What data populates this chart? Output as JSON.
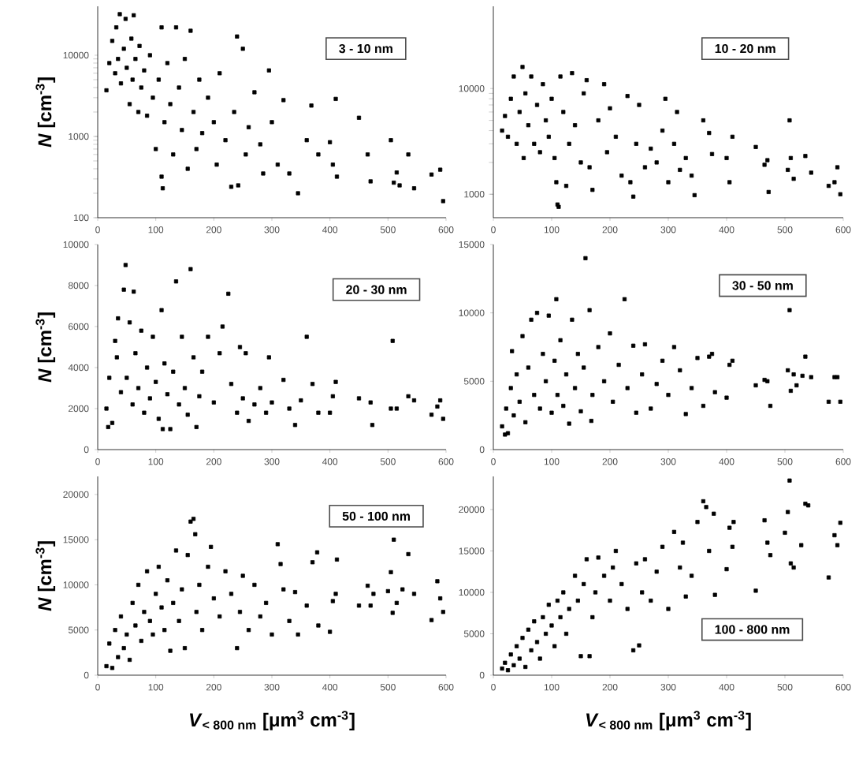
{
  "chart_data": [
    {
      "type": "scatter",
      "log": "y",
      "marker": "square",
      "color": "#000000",
      "xlim": [
        0,
        600
      ],
      "xticks": [
        0,
        100,
        200,
        300,
        400,
        500,
        600
      ],
      "ylim": [
        100,
        40000
      ],
      "yticks": [
        100,
        1000,
        10000
      ],
      "ylabel": "*N* [cm$^{-3}$]",
      "annotations": [
        "3 - 10 nm"
      ],
      "x": [
        15,
        20,
        25,
        30,
        32,
        35,
        38,
        40,
        45,
        48,
        50,
        55,
        58,
        60,
        62,
        65,
        70,
        72,
        75,
        80,
        85,
        90,
        95,
        100,
        105,
        110,
        110,
        112,
        115,
        120,
        125,
        130,
        135,
        140,
        145,
        150,
        155,
        160,
        165,
        170,
        175,
        180,
        190,
        200,
        205,
        210,
        220,
        230,
        235,
        240,
        242,
        250,
        255,
        260,
        270,
        280,
        285,
        295,
        300,
        310,
        320,
        330,
        345,
        360,
        368,
        380,
        400,
        405,
        410,
        412,
        450,
        465,
        470,
        505,
        510,
        515,
        520,
        535,
        545,
        575,
        590,
        595
      ],
      "values": [
        3700,
        8000,
        15000,
        6000,
        22000,
        9000,
        32000,
        4500,
        12000,
        28000,
        7000,
        2500,
        16000,
        5000,
        31000,
        9000,
        2000,
        13000,
        4000,
        6500,
        1800,
        10000,
        3000,
        700,
        5000,
        22000,
        320,
        230,
        1500,
        8000,
        2500,
        600,
        22000,
        4000,
        1200,
        9000,
        400,
        20000,
        2000,
        700,
        5000,
        1100,
        3000,
        1500,
        450,
        6000,
        900,
        240,
        2000,
        17000,
        250,
        12000,
        600,
        1300,
        3500,
        800,
        350,
        6500,
        1500,
        450,
        2800,
        350,
        200,
        900,
        2400,
        600,
        850,
        450,
        2900,
        320,
        1700,
        600,
        280,
        900,
        270,
        360,
        250,
        600,
        230,
        340,
        390,
        160
      ]
    },
    {
      "type": "scatter",
      "log": "y",
      "marker": "square",
      "color": "#000000",
      "xlim": [
        0,
        600
      ],
      "xticks": [
        0,
        100,
        200,
        300,
        400,
        500,
        600
      ],
      "ylim": [
        600,
        60000
      ],
      "yticks": [
        1000,
        10000
      ],
      "annotations": [
        "10 - 20 nm"
      ],
      "x": [
        15,
        20,
        25,
        30,
        35,
        40,
        45,
        50,
        52,
        55,
        60,
        65,
        70,
        75,
        80,
        85,
        90,
        95,
        100,
        105,
        108,
        110,
        112,
        115,
        120,
        125,
        130,
        135,
        140,
        150,
        155,
        160,
        165,
        170,
        180,
        190,
        195,
        200,
        210,
        220,
        230,
        235,
        240,
        245,
        250,
        260,
        270,
        280,
        290,
        295,
        300,
        310,
        315,
        320,
        330,
        340,
        345,
        360,
        370,
        375,
        400,
        405,
        410,
        450,
        465,
        470,
        472,
        505,
        508,
        510,
        515,
        535,
        545,
        575,
        585,
        590,
        595
      ],
      "values": [
        4000,
        5500,
        3500,
        8000,
        13000,
        3000,
        6000,
        16000,
        2200,
        9000,
        4500,
        13000,
        3000,
        7000,
        2500,
        11000,
        5000,
        3500,
        8000,
        2200,
        1300,
        800,
        760,
        13000,
        6000,
        1200,
        3000,
        14000,
        4500,
        2000,
        9000,
        12000,
        1800,
        1100,
        5000,
        11000,
        2500,
        6500,
        3500,
        1500,
        8500,
        1300,
        950,
        3000,
        7000,
        1800,
        2700,
        2000,
        4000,
        8000,
        1300,
        3000,
        6000,
        1700,
        2200,
        1500,
        980,
        5000,
        3800,
        2400,
        2200,
        1300,
        3500,
        2800,
        1900,
        2100,
        1050,
        1700,
        5000,
        2200,
        1400,
        2300,
        1600,
        1200,
        1300,
        1800,
        1000
      ]
    },
    {
      "type": "scatter",
      "marker": "square",
      "color": "#000000",
      "xlim": [
        0,
        600
      ],
      "xticks": [
        0,
        100,
        200,
        300,
        400,
        500,
        600
      ],
      "ylim": [
        0,
        10000
      ],
      "yticks": [
        0,
        2000,
        4000,
        6000,
        8000,
        10000
      ],
      "ylabel": "*N* [cm$^{-3}$]",
      "annotations": [
        "20 - 30 nm"
      ],
      "x": [
        15,
        18,
        20,
        25,
        30,
        33,
        35,
        40,
        45,
        48,
        50,
        55,
        60,
        62,
        65,
        70,
        75,
        80,
        85,
        90,
        95,
        100,
        105,
        110,
        112,
        115,
        120,
        125,
        130,
        135,
        140,
        145,
        150,
        155,
        160,
        165,
        170,
        175,
        180,
        190,
        200,
        210,
        215,
        225,
        230,
        240,
        245,
        250,
        255,
        260,
        270,
        280,
        290,
        295,
        300,
        320,
        330,
        340,
        350,
        360,
        370,
        380,
        400,
        405,
        410,
        450,
        470,
        473,
        505,
        508,
        515,
        535,
        545,
        575,
        585,
        590,
        595
      ],
      "values": [
        2000,
        1100,
        3500,
        1300,
        5300,
        4500,
        6400,
        2800,
        7800,
        9000,
        3500,
        6200,
        2200,
        7700,
        4700,
        3000,
        5800,
        1800,
        4000,
        2500,
        5500,
        3300,
        1500,
        6800,
        1000,
        4200,
        2700,
        1000,
        3800,
        8200,
        2200,
        5500,
        3000,
        1700,
        8800,
        4500,
        1100,
        2600,
        3800,
        5500,
        2300,
        4700,
        6000,
        7600,
        3200,
        1800,
        5000,
        2500,
        4700,
        1400,
        2200,
        3000,
        1800,
        4500,
        2300,
        3400,
        2000,
        1200,
        2400,
        5500,
        3200,
        1800,
        1800,
        2600,
        3300,
        2500,
        2300,
        1200,
        2000,
        5300,
        2000,
        2600,
        2400,
        1700,
        2100,
        2400,
        1500
      ]
    },
    {
      "type": "scatter",
      "marker": "square",
      "color": "#000000",
      "xlim": [
        0,
        600
      ],
      "xticks": [
        0,
        100,
        200,
        300,
        400,
        500,
        600
      ],
      "ylim": [
        0,
        15000
      ],
      "yticks": [
        0,
        5000,
        10000,
        15000
      ],
      "annotations": [
        "30 - 50 nm"
      ],
      "x": [
        15,
        20,
        22,
        25,
        30,
        32,
        35,
        40,
        45,
        50,
        55,
        60,
        65,
        70,
        75,
        80,
        85,
        90,
        95,
        100,
        105,
        108,
        110,
        115,
        120,
        125,
        130,
        135,
        140,
        145,
        150,
        155,
        158,
        165,
        168,
        170,
        180,
        190,
        200,
        205,
        215,
        225,
        230,
        240,
        245,
        255,
        260,
        270,
        280,
        290,
        300,
        310,
        320,
        330,
        340,
        350,
        360,
        370,
        375,
        380,
        400,
        405,
        410,
        450,
        465,
        470,
        475,
        505,
        508,
        510,
        515,
        520,
        530,
        535,
        545,
        575,
        585,
        590,
        595
      ],
      "values": [
        1700,
        1100,
        3000,
        1200,
        4500,
        7200,
        2500,
        5500,
        3500,
        8300,
        2000,
        6000,
        9500,
        4000,
        10000,
        3000,
        7000,
        5000,
        9800,
        2700,
        6500,
        11000,
        4000,
        8000,
        3200,
        5500,
        1900,
        9500,
        4500,
        7000,
        2800,
        6000,
        14000,
        10200,
        2100,
        4000,
        7500,
        5000,
        8500,
        3500,
        6200,
        11000,
        4500,
        7600,
        2700,
        5500,
        7700,
        3000,
        4800,
        6500,
        4000,
        7500,
        5800,
        2600,
        4500,
        6700,
        3200,
        6800,
        7000,
        4200,
        3800,
        6200,
        6500,
        4700,
        5100,
        5000,
        3200,
        5800,
        10200,
        4300,
        5500,
        4700,
        5400,
        6800,
        5300,
        3500,
        5300,
        5300,
        3500
      ]
    },
    {
      "type": "scatter",
      "marker": "square",
      "color": "#000000",
      "xlim": [
        0,
        600
      ],
      "xticks": [
        0,
        100,
        200,
        300,
        400,
        500,
        600
      ],
      "ylim": [
        0,
        22000
      ],
      "yticks": [
        0,
        5000,
        10000,
        15000,
        20000
      ],
      "ylabel": "*N* [cm$^{-3}$]",
      "xlabel": "*V*$_{< 800 nm}$ [μm$^{3}$ cm$^{-3}$]",
      "annotations": [
        "50 - 100 nm"
      ],
      "x": [
        15,
        20,
        25,
        30,
        35,
        40,
        45,
        50,
        55,
        60,
        65,
        70,
        75,
        80,
        85,
        90,
        95,
        100,
        105,
        110,
        115,
        120,
        125,
        130,
        135,
        140,
        145,
        150,
        155,
        160,
        165,
        168,
        170,
        175,
        180,
        190,
        195,
        200,
        210,
        220,
        230,
        240,
        245,
        250,
        260,
        270,
        280,
        290,
        300,
        310,
        315,
        320,
        330,
        340,
        345,
        360,
        370,
        378,
        380,
        400,
        405,
        410,
        412,
        450,
        465,
        470,
        475,
        500,
        505,
        508,
        510,
        515,
        525,
        535,
        545,
        575,
        585,
        590,
        595
      ],
      "values": [
        1000,
        3500,
        800,
        5000,
        2000,
        6500,
        3000,
        4500,
        1700,
        8000,
        5500,
        10000,
        3800,
        7000,
        11500,
        6000,
        4500,
        9000,
        12000,
        7500,
        5000,
        10500,
        2700,
        8000,
        13800,
        6000,
        9500,
        3000,
        13300,
        17000,
        17300,
        15600,
        7000,
        10000,
        5000,
        12000,
        14200,
        8500,
        6500,
        11500,
        9000,
        3000,
        7000,
        11000,
        5000,
        10000,
        6500,
        8000,
        4500,
        14500,
        12300,
        9500,
        6000,
        9200,
        4500,
        7700,
        12500,
        13600,
        5500,
        4800,
        8200,
        9000,
        12800,
        7700,
        9900,
        7700,
        9000,
        9300,
        11400,
        6900,
        15000,
        8000,
        9500,
        13400,
        9000,
        6100,
        10400,
        8500,
        7000
      ]
    },
    {
      "type": "scatter",
      "marker": "square",
      "color": "#000000",
      "xlim": [
        0,
        600
      ],
      "xticks": [
        0,
        100,
        200,
        300,
        400,
        500,
        600
      ],
      "ylim": [
        0,
        24000
      ],
      "yticks": [
        0,
        5000,
        10000,
        15000,
        20000
      ],
      "xlabel": "*V*$_{< 800 nm}$ [μm$^{3}$ cm$^{-3}$]",
      "annotations": [
        "100 - 800 nm"
      ],
      "x": [
        15,
        20,
        25,
        30,
        35,
        40,
        45,
        50,
        55,
        60,
        65,
        70,
        75,
        80,
        85,
        90,
        95,
        100,
        105,
        110,
        115,
        120,
        125,
        130,
        140,
        145,
        150,
        155,
        160,
        165,
        170,
        175,
        180,
        190,
        200,
        205,
        210,
        220,
        230,
        240,
        245,
        250,
        255,
        260,
        270,
        280,
        290,
        300,
        310,
        320,
        325,
        330,
        340,
        350,
        360,
        365,
        370,
        378,
        380,
        400,
        405,
        410,
        412,
        450,
        465,
        470,
        475,
        500,
        505,
        508,
        510,
        515,
        528,
        535,
        540,
        575,
        585,
        590,
        595
      ],
      "values": [
        800,
        1500,
        600,
        2500,
        1200,
        3500,
        2000,
        4500,
        1000,
        5500,
        3000,
        6500,
        4000,
        2000,
        7000,
        5000,
        8500,
        6000,
        3500,
        9000,
        7000,
        10000,
        5000,
        8000,
        12000,
        9000,
        2300,
        11000,
        14000,
        2300,
        7000,
        10000,
        14200,
        12000,
        9000,
        13000,
        15000,
        11000,
        8000,
        3000,
        13500,
        3600,
        10000,
        14000,
        9000,
        12500,
        15500,
        8000,
        17300,
        13000,
        16000,
        9500,
        12000,
        18500,
        21000,
        20300,
        15000,
        19500,
        9700,
        12800,
        17800,
        15500,
        18500,
        10200,
        18700,
        16000,
        14500,
        17200,
        19700,
        23500,
        13500,
        13000,
        15700,
        20700,
        20500,
        11800,
        16900,
        15700,
        18400
      ]
    }
  ]
}
